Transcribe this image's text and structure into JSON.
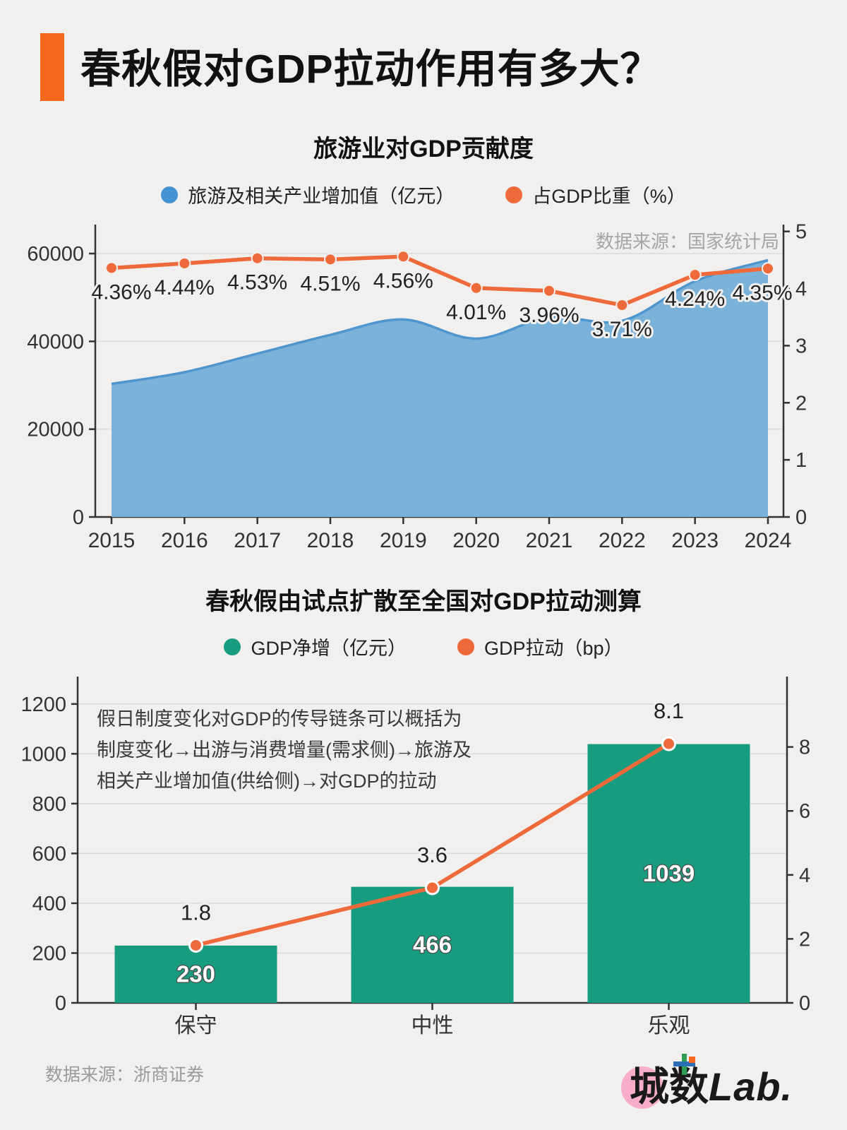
{
  "page": {
    "bg": "#f1f0ee"
  },
  "header": {
    "title": "春秋假对GDP拉动作用有多大？",
    "accent_color": "#f5671d"
  },
  "chart1_ui": {
    "title": "旅游业对GDP贡献度",
    "legend": [
      {
        "label": "旅游及相关产业增加值（亿元）",
        "color": "#4593d2"
      },
      {
        "label": "占GDP比重（%）",
        "color": "#ef6a3b"
      }
    ],
    "source_note": "数据来源：国家统计局"
  },
  "chart2_ui": {
    "title": "春秋假由试点扩散至全国对GDP拉动测算",
    "legend": [
      {
        "label": "GDP净增（亿元）",
        "color": "#189c80"
      },
      {
        "label": "GDP拉动（bp）",
        "color": "#ef6a3b"
      }
    ],
    "annotation": [
      "假日制度变化对GDP的传导链条可以概括为",
      "制度变化→出游与消费增量(需求侧)→旅游及",
      "相关产业增加值(供给侧)→对GDP的拉动"
    ]
  },
  "footer": {
    "source": "数据来源：浙商证券",
    "logo": {
      "text_cn": "城数",
      "text_en": "Lab.",
      "circle_color": "#f8aecb"
    }
  },
  "chart_data": [
    {
      "type": "area",
      "title": "旅游业对GDP贡献度",
      "x": [
        "2015",
        "2016",
        "2017",
        "2018",
        "2019",
        "2020",
        "2021",
        "2022",
        "2023",
        "2024"
      ],
      "series": [
        {
          "name": "旅游及相关产业增加值（亿元）",
          "type": "area",
          "yaxis": "left",
          "fill_color": "#7bb2d9",
          "line_color": "#4e96cd",
          "values": [
            30320,
            32979,
            37210,
            41478,
            44989,
            40628,
            45484,
            44672,
            53700,
            58500
          ]
        },
        {
          "name": "占GDP比重（%）",
          "type": "line",
          "yaxis": "right",
          "color": "#ef6a3b",
          "values": [
            4.36,
            4.44,
            4.53,
            4.51,
            4.56,
            4.01,
            3.96,
            3.71,
            4.24,
            4.35
          ],
          "point_labels": [
            "4.36%",
            "4.44%",
            "4.53%",
            "4.51%",
            "4.56%",
            "4.01%",
            "3.96%",
            "3.71%",
            "4.24%",
            "4.35%"
          ]
        }
      ],
      "left_axis": {
        "ticks": [
          0,
          20000,
          40000,
          60000
        ],
        "range": [
          0,
          66600
        ]
      },
      "right_axis": {
        "ticks": [
          0,
          1,
          2,
          3,
          4,
          5
        ],
        "range": [
          0,
          5.12
        ]
      },
      "grid": true,
      "legend_position": "top",
      "source_note": "数据来源：国家统计局"
    },
    {
      "type": "bar",
      "title": "春秋假由试点扩散至全国对GDP拉动测算",
      "categories": [
        "保守",
        "中性",
        "乐观"
      ],
      "series": [
        {
          "name": "GDP净增（亿元）",
          "type": "bar",
          "yaxis": "left",
          "color": "#189c80",
          "values": [
            230,
            466,
            1039
          ],
          "value_labels": [
            "230",
            "466",
            "1039"
          ]
        },
        {
          "name": "GDP拉动（bp）",
          "type": "line",
          "yaxis": "right",
          "color": "#ef6a3b",
          "values": [
            1.8,
            3.6,
            8.1
          ],
          "point_labels": [
            "1.8",
            "3.6",
            "8.1"
          ]
        }
      ],
      "left_axis": {
        "ticks": [
          0,
          200,
          400,
          600,
          800,
          1000,
          1200
        ],
        "range": [
          0,
          1310
        ]
      },
      "right_axis": {
        "ticks": [
          0,
          2,
          4,
          6,
          8
        ],
        "range": [
          0,
          10.2
        ]
      },
      "grid": true,
      "legend_position": "top"
    }
  ]
}
